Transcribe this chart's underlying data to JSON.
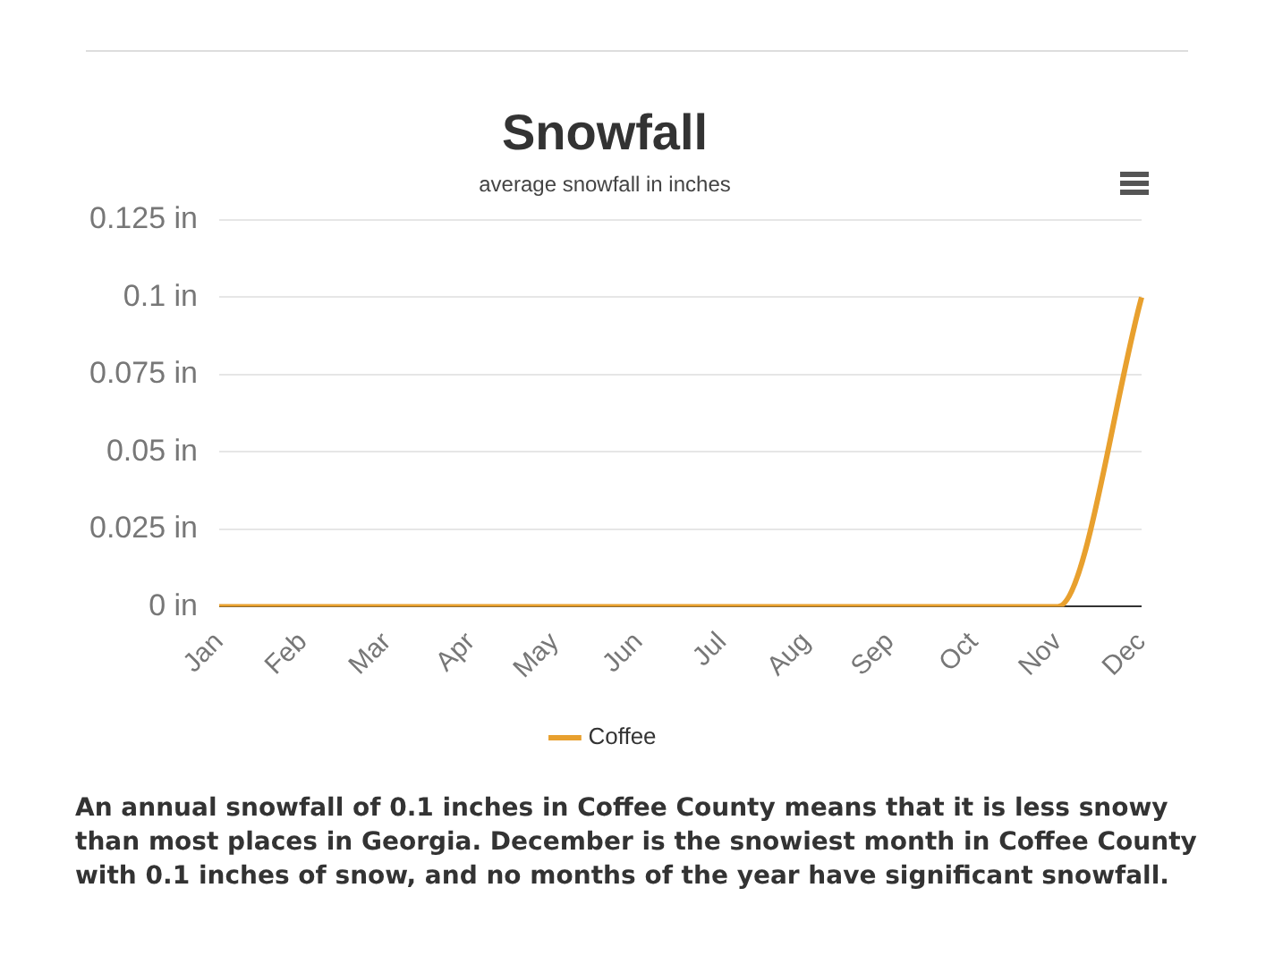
{
  "chart_data": {
    "type": "line",
    "title": "Snowfall",
    "subtitle": "average snowfall in inches",
    "categories": [
      "Jan",
      "Feb",
      "Mar",
      "Apr",
      "May",
      "Jun",
      "Jul",
      "Aug",
      "Sep",
      "Oct",
      "Nov",
      "Dec"
    ],
    "series": [
      {
        "name": "Coffee",
        "color": "#e8a02e",
        "values": [
          0,
          0,
          0,
          0,
          0,
          0,
          0,
          0,
          0,
          0,
          0,
          0.1
        ]
      }
    ],
    "ylim": [
      0,
      0.125
    ],
    "yticks": [
      {
        "value": 0,
        "label": "0 in"
      },
      {
        "value": 0.025,
        "label": "0.025 in"
      },
      {
        "value": 0.05,
        "label": "0.05 in"
      },
      {
        "value": 0.075,
        "label": "0.075 in"
      },
      {
        "value": 0.1,
        "label": "0.1 in"
      },
      {
        "value": 0.125,
        "label": "0.125 in"
      }
    ],
    "grid": "y",
    "legend": "bottom",
    "marker": "none",
    "line_style": "solid",
    "annotations": [
      "An annual snowfall of 0.1 inches in Coffee County means that it is less snowy than most places in Georgia. December is the snowiest month in Coffee County with 0.1 inches of snow, and no months of the year have significant snowfall."
    ]
  }
}
